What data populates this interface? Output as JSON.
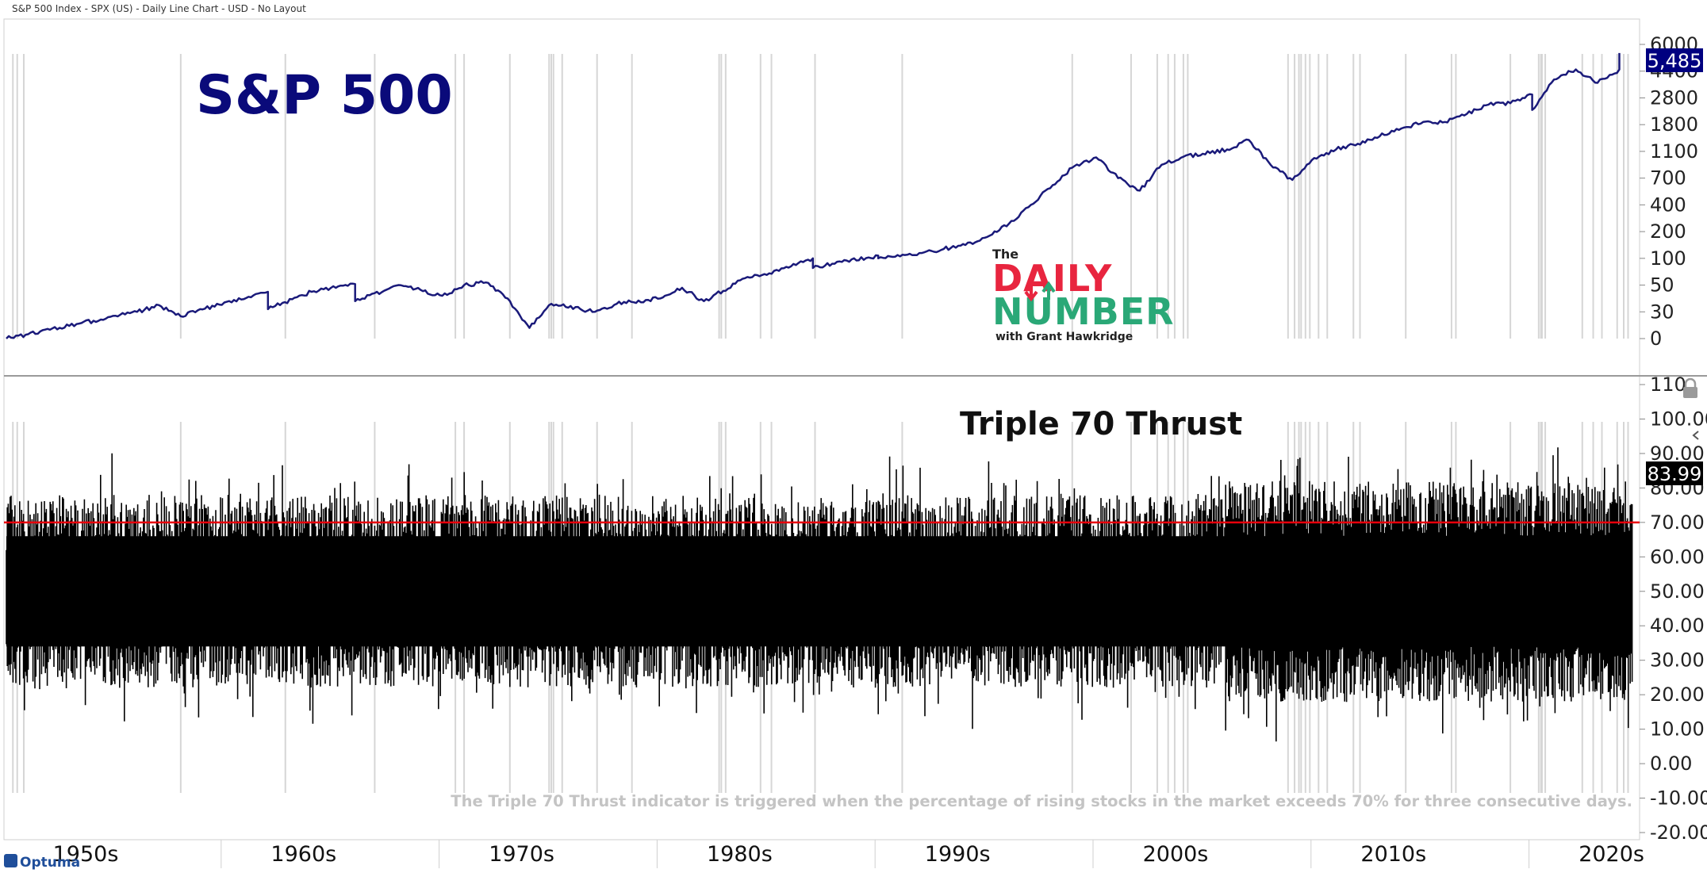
{
  "header": {
    "description": "S&P 500 Index - SPX (US) - Daily Line Chart - USD - No Layout"
  },
  "footer": {
    "brand": "Optuma"
  },
  "logo": {
    "line1": "The",
    "line2": "DAILY",
    "line3": "NUMBER",
    "line4": "with Grant Hawkridge",
    "colors": {
      "daily": "#e8253f",
      "number": "#2aa877",
      "arrow_down": "#e8253f",
      "arrow_up": "#2aa877"
    }
  },
  "colors": {
    "price_line": "#1a1a7a",
    "indicator_bars": "#000000",
    "threshold_line": "#e8000b",
    "signal_lines": "#d6d6d6",
    "title_blue": "#0a0a7a",
    "note_text": "#c4c4c4",
    "last_value_bg": "#000080"
  },
  "chart_data": [
    {
      "type": "line",
      "title": "S&P 500",
      "y_scale": "custom",
      "y_ticks": [
        "0",
        "30",
        "50",
        "100",
        "200",
        "400",
        "700",
        "1100",
        "1800",
        "2800",
        "4400",
        "6000"
      ],
      "last_value_label": "5,485",
      "x": [
        "1950",
        "1952",
        "1954",
        "1956",
        "1957",
        "1958",
        "1960",
        "1962",
        "1962",
        "1964",
        "1966",
        "1966",
        "1968",
        "1970",
        "1971",
        "1972",
        "1973",
        "1974",
        "1975",
        "1977",
        "1978",
        "1980",
        "1981",
        "1982",
        "1984",
        "1985",
        "1986",
        "1987",
        "1987",
        "1988",
        "1990",
        "1990",
        "1992",
        "1994",
        "1995",
        "1996",
        "1997",
        "1998",
        "1999",
        "2000",
        "2001",
        "2002",
        "2003",
        "2004",
        "2006",
        "2007",
        "2008",
        "2009",
        "2010",
        "2011",
        "2012",
        "2014",
        "2015",
        "2016",
        "2017",
        "2018",
        "2019",
        "2020",
        "2020",
        "2021",
        "2022",
        "2023",
        "2024",
        "2024"
      ],
      "series": [
        {
          "values": [
            0,
            10,
            20,
            30,
            35,
            25,
            37,
            45,
            32,
            45,
            52,
            38,
            50,
            42,
            50,
            55,
            40,
            12,
            36,
            30,
            36,
            40,
            48,
            38,
            65,
            72,
            85,
            100,
            82,
            90,
            110,
            100,
            120,
            150,
            180,
            260,
            400,
            620,
            880,
            1010,
            700,
            560,
            900,
            1020,
            1150,
            1400,
            900,
            680,
            1000,
            1150,
            1300,
            1700,
            1900,
            1900,
            2200,
            2550,
            2600,
            3000,
            2350,
            3900,
            4500,
            3700,
            4500,
            5485
          ]
        }
      ]
    },
    {
      "type": "bar",
      "title": "Triple 70 Thrust",
      "y_ticks": [
        "110",
        "100.00",
        "90.00",
        "80.00",
        "70.00",
        "60.00",
        "50.00",
        "40.00",
        "30.00",
        "20.00",
        "10.00",
        "0.00",
        "-10.00",
        "-20.00"
      ],
      "last_value_label": "83.99",
      "threshold": 70,
      "x_ticks": [
        "1950s",
        "1960s",
        "1970s",
        "1980s",
        "1990s",
        "2000s",
        "2010s",
        "2020s"
      ],
      "note": "The Triple 70 Thrust indicator is triggered when the percentage of rising stocks in the market exceeds 70% for three consecutive days.",
      "signal_dates": [
        "1950.3",
        "1950.5",
        "1950.8",
        "1958.0",
        "1962.8",
        "1966.9",
        "1970.6",
        "1971.0",
        "1973.1",
        "1974.9",
        "1975.0",
        "1975.1",
        "1975.5",
        "1977.1",
        "1978.7",
        "1982.7",
        "1982.8",
        "1983.0",
        "1984.6",
        "1985.1",
        "1987.1",
        "1991.1",
        "1998.9",
        "2001.6",
        "2002.8",
        "2003.3",
        "2003.6",
        "2004.0",
        "2004.2",
        "2008.8",
        "2009.1",
        "2009.3",
        "2009.4",
        "2009.6",
        "2009.8",
        "2010.2",
        "2010.6",
        "2011.8",
        "2012.1",
        "2014.2",
        "2016.3",
        "2016.5",
        "2019.0",
        "2020.3",
        "2020.4",
        "2020.45",
        "2020.6",
        "2022.3",
        "2022.8",
        "2023.2",
        "2023.9",
        "2024.2",
        "2024.4"
      ]
    }
  ]
}
